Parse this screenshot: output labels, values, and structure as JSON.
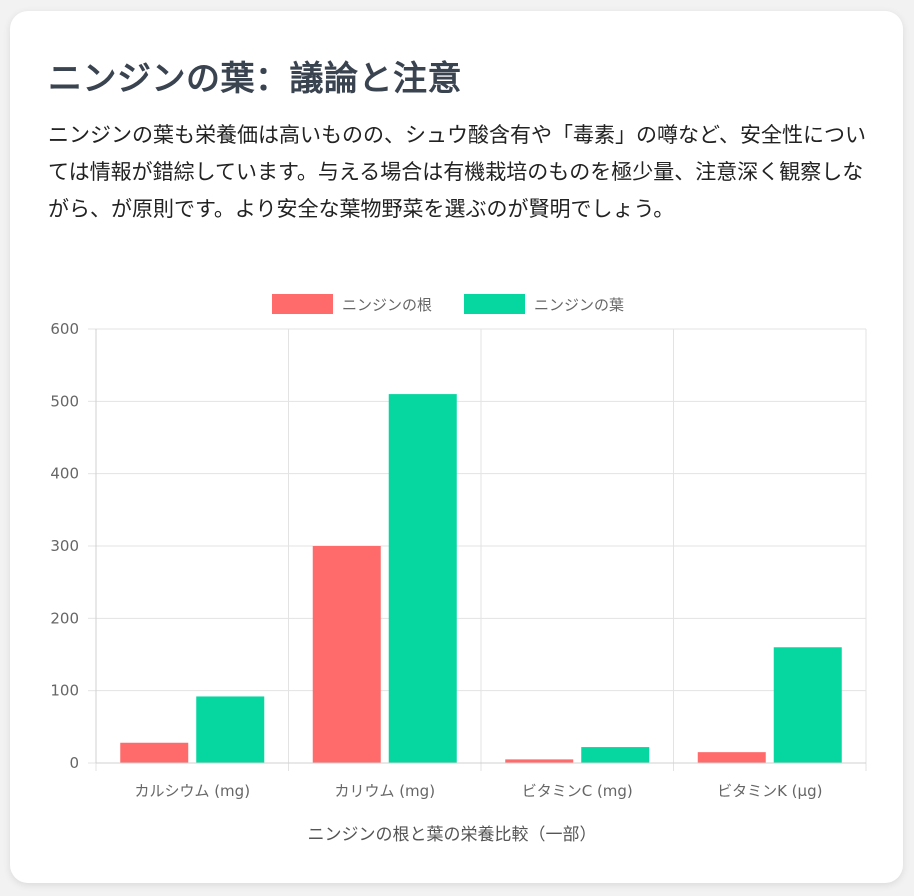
{
  "heading": "ニンジンの葉：議論と注意",
  "description": "ニンジンの葉も栄養価は高いものの、シュウ酸含有や「毒素」の噂など、安全性については情報が錯綜しています。与える場合は有機栽培のものを極少量、注意深く観察しながら、が原則です。より安全な葉物野菜を選ぶのが賢明でしょう。",
  "chart_data": {
    "type": "bar",
    "categories": [
      "カルシウム (mg)",
      "カリウム (mg)",
      "ビタミンC (mg)",
      "ビタミンK (µg)"
    ],
    "series": [
      {
        "name": "ニンジンの根",
        "values": [
          28,
          300,
          5,
          15
        ],
        "color": "#ff6b6b"
      },
      {
        "name": "ニンジンの葉",
        "values": [
          92,
          510,
          22,
          160
        ],
        "color": "#06d6a0"
      }
    ],
    "xlabel": "ニンジンの根と葉の栄養比較（一部）",
    "ylabel": "",
    "ylim": [
      0,
      600
    ],
    "yticks": [
      0,
      100,
      200,
      300,
      400,
      500,
      600
    ],
    "grid": true,
    "legend": "top-center"
  }
}
